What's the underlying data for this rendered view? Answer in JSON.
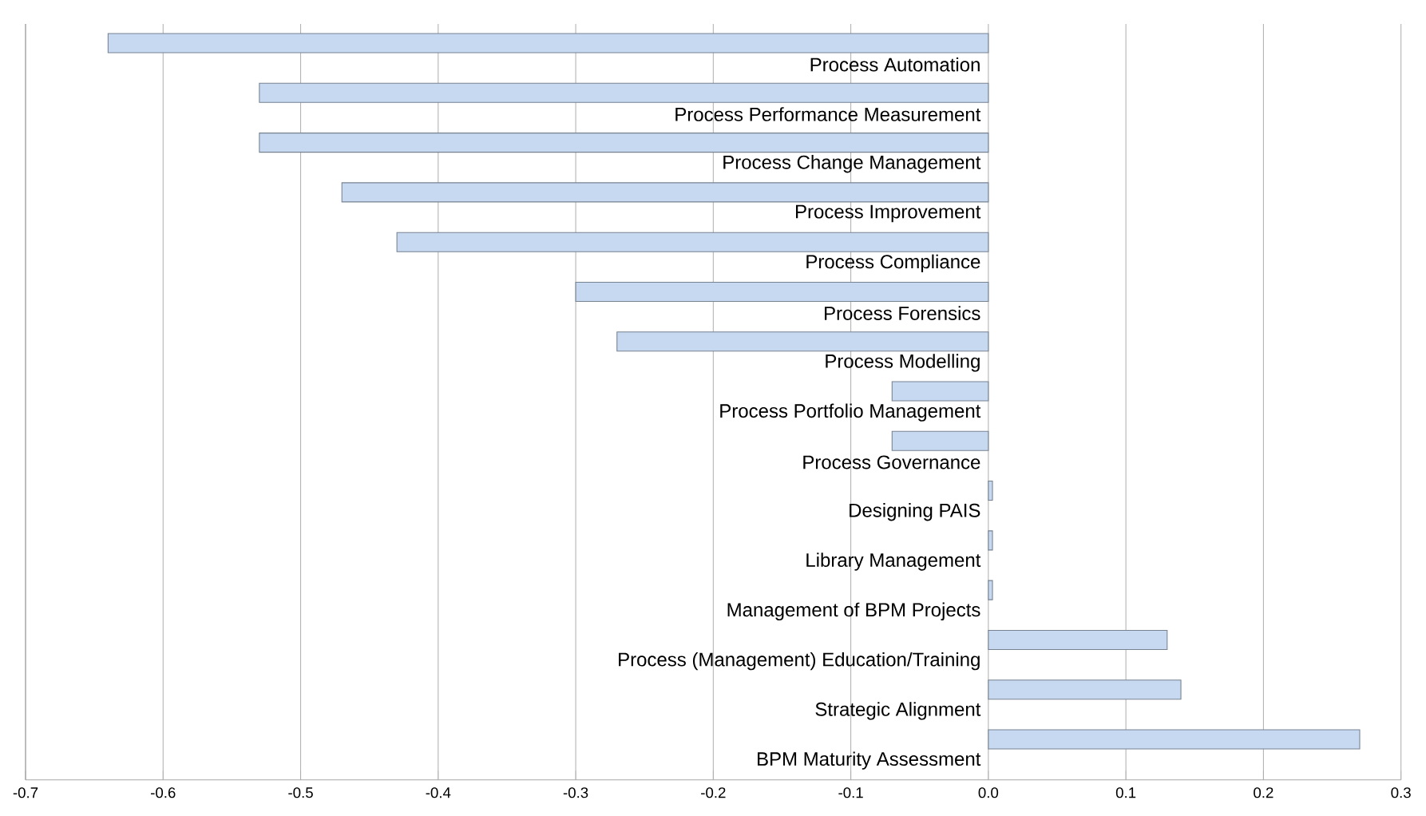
{
  "chart_data": {
    "type": "bar",
    "orientation": "horizontal",
    "categories": [
      "Process Automation",
      "Process Performance Measurement",
      "Process Change Management",
      "Process Improvement",
      "Process Compliance",
      "Process Forensics",
      "Process Modelling",
      "Process Portfolio Management",
      "Process Governance",
      "Designing PAIS",
      "Library Management",
      "Management of BPM Projects",
      "Process (Management) Education/Training",
      "Strategic Alignment",
      "BPM Maturity Assessment"
    ],
    "values": [
      -0.64,
      -0.53,
      -0.53,
      -0.47,
      -0.43,
      -0.3,
      -0.27,
      -0.07,
      -0.07,
      0.003,
      0.003,
      0.003,
      0.13,
      0.14,
      0.27
    ],
    "color": "#c6d9f1",
    "xlim": [
      -0.7,
      0.3
    ],
    "xticks": [
      -0.7,
      -0.6,
      -0.5,
      -0.4,
      -0.3,
      -0.2,
      -0.1,
      {
        "value": 0,
        "label": "0.0"
      },
      0.1,
      0.2,
      0.3
    ],
    "grid": "x"
  }
}
